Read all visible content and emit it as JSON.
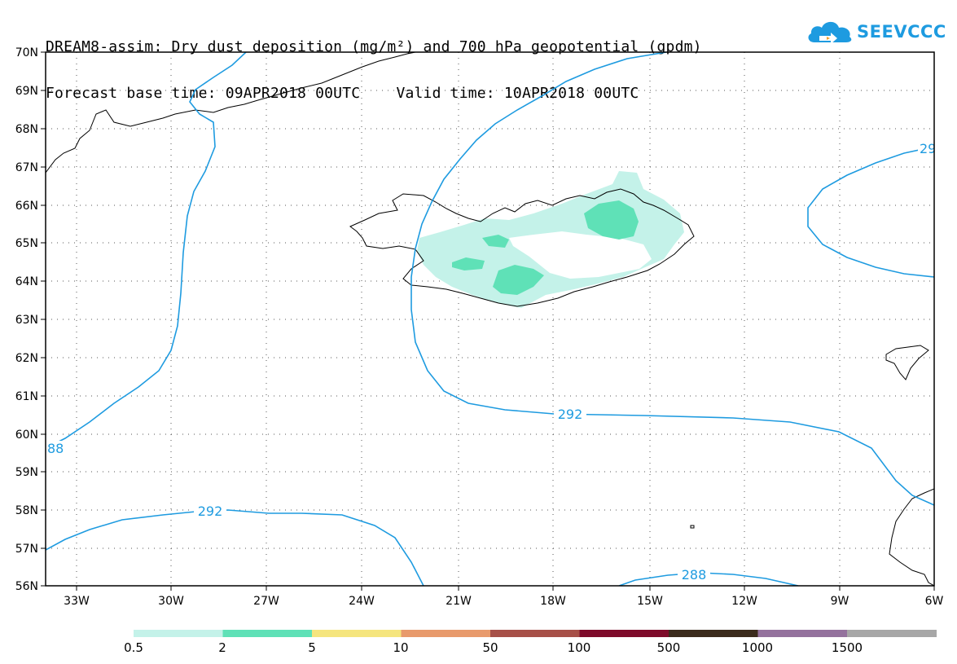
{
  "title": {
    "line1": "DREAM8-assim: Dry dust deposition (mg/m²) and 700 hPa geopotential (gpdm)",
    "line2": "Forecast base time: 09APR2018 00UTC    Valid time: 10APR2018 00UTC"
  },
  "logo": {
    "text": "SEEVCCC",
    "icon": "cloud-arrow-icon"
  },
  "map": {
    "lat_labels": [
      "70N",
      "69N",
      "68N",
      "67N",
      "66N",
      "65N",
      "64N",
      "63N",
      "62N",
      "61N",
      "60N",
      "59N",
      "58N",
      "57N",
      "56N"
    ],
    "lon_labels": [
      "33W",
      "30W",
      "27W",
      "24W",
      "21W",
      "18W",
      "15W",
      "12W",
      "9W",
      "6W"
    ],
    "contour_labels": [
      "292",
      "292",
      "288",
      "88",
      "29"
    ],
    "contour_color": "#1e9be0"
  },
  "legend": {
    "colors": [
      "#c4f2e9",
      "#5fe1b7",
      "#f5e57e",
      "#e89a6c",
      "#a75048",
      "#7e0b2a",
      "#3b2b1c",
      "#94729d",
      "#a7a7a7"
    ],
    "labels": [
      "0.5",
      "2",
      "5",
      "10",
      "50",
      "100",
      "500",
      "1000",
      "1500"
    ]
  }
}
